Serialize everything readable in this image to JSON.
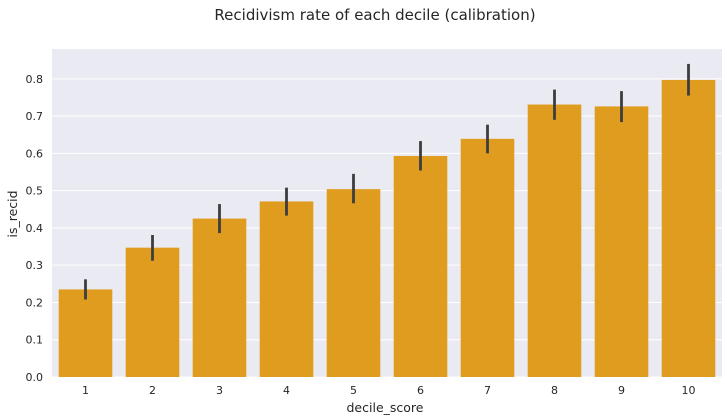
{
  "chart_data": {
    "type": "bar",
    "title": "Recidivism rate of each decile (calibration)",
    "xlabel": "decile_score",
    "ylabel": "is_recid",
    "categories": [
      "1",
      "2",
      "3",
      "4",
      "5",
      "6",
      "7",
      "8",
      "9",
      "10"
    ],
    "values": [
      0.235,
      0.347,
      0.425,
      0.471,
      0.504,
      0.593,
      0.639,
      0.731,
      0.726,
      0.797
    ],
    "ci_low": [
      0.208,
      0.312,
      0.386,
      0.433,
      0.466,
      0.554,
      0.6,
      0.69,
      0.684,
      0.755
    ],
    "ci_high": [
      0.262,
      0.381,
      0.464,
      0.508,
      0.545,
      0.633,
      0.677,
      0.771,
      0.767,
      0.84
    ],
    "ylim": [
      0,
      0.88
    ],
    "yticks": [
      0.0,
      0.1,
      0.2,
      0.3,
      0.4,
      0.5,
      0.6,
      0.7,
      0.8
    ],
    "ytick_labels": [
      "0.0",
      "0.1",
      "0.2",
      "0.3",
      "0.4",
      "0.5",
      "0.6",
      "0.7",
      "0.8"
    ],
    "grid": true,
    "colors": {
      "bar": "#e09c1e",
      "errorbar": "#3d3d3d",
      "background": "#eaeaf2",
      "grid": "#ffffff"
    }
  }
}
